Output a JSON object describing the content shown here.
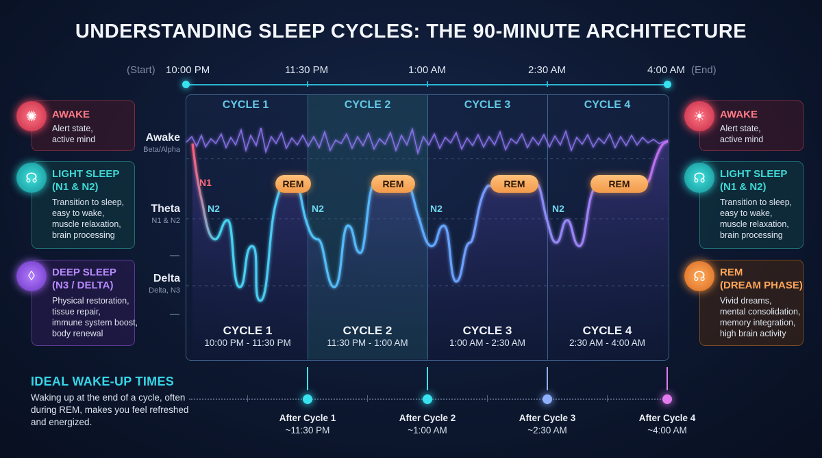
{
  "title": "UNDERSTANDING SLEEP CYCLES: THE 90-MINUTE ARCHITECTURE",
  "timeline": {
    "start_note": "(Start)",
    "end_note": "(End)",
    "labels": [
      "10:00 PM",
      "11:30 PM",
      "1:00 AM",
      "2:30 AM",
      "4:00 AM"
    ]
  },
  "cycles": [
    {
      "head": "CYCLE 1",
      "title": "CYCLE 1",
      "range": "10:00 PM - 11:30 PM"
    },
    {
      "head": "CYCLE 2",
      "title": "CYCLE 2",
      "range": "11:30 PM - 1:00 AM"
    },
    {
      "head": "CYCLE 3",
      "title": "CYCLE 3",
      "range": "1:00 AM - 2:30 AM"
    },
    {
      "head": "CYCLE 4",
      "title": "CYCLE 4",
      "range": "2:30 AM - 4:00 AM"
    }
  ],
  "y_levels": [
    {
      "name": "Awake",
      "sub": "Beta/Alpha"
    },
    {
      "name": "Theta",
      "sub": "N1 & N2"
    },
    {
      "name": "Delta",
      "sub": "Delta, N3"
    }
  ],
  "stage_labels": {
    "n1": "N1",
    "n2": "N2",
    "rem": "REM"
  },
  "left_cards": [
    {
      "title": "AWAKE",
      "subtitle": "",
      "lines": [
        "Alert state,",
        "active mind"
      ],
      "color": "#ff5a6e",
      "icon": "brain-icon"
    },
    {
      "title": "LIGHT SLEEP",
      "subtitle": "(N1 & N2)",
      "lines": [
        "Transition to sleep,",
        "easy to wake,",
        "muscle relaxation,",
        "brain processing"
      ],
      "color": "#27c9c9",
      "icon": "head-brain-icon"
    },
    {
      "title": "DEEP SLEEP",
      "subtitle": "(N3 / DELTA)",
      "lines": [
        "Physical restoration,",
        "tissue repair,",
        "immune system boost,",
        "body renewal"
      ],
      "color": "#a466f0",
      "icon": "droplet-icon"
    }
  ],
  "right_cards": [
    {
      "title": "AWAKE",
      "subtitle": "",
      "lines": [
        "Alert state,",
        "active mind"
      ],
      "color": "#ff5a6e",
      "icon": "lightbulb-icon"
    },
    {
      "title": "LIGHT SLEEP",
      "subtitle": "(N1 & N2)",
      "lines": [
        "Transition to sleep,",
        "easy to wake,",
        "muscle relaxation,",
        "brain processing"
      ],
      "color": "#27c9c9",
      "icon": "head-brain-icon"
    },
    {
      "title": "REM",
      "subtitle": "(DREAM PHASE)",
      "lines": [
        "Vivid dreams,",
        "mental consolidation,",
        "memory integration,",
        "high brain activity"
      ],
      "color": "#f7913a",
      "icon": "head-brain-icon"
    }
  ],
  "wake": {
    "title": "IDEAL WAKE-UP TIMES",
    "description": "Waking up at the end of a cycle, often during REM, makes you feel refreshed and energized.",
    "points": [
      {
        "label": "After Cycle 1",
        "time": "~11:30 PM",
        "color": "#38e3f0"
      },
      {
        "label": "After Cycle 2",
        "time": "~1:00 AM",
        "color": "#38e3f0"
      },
      {
        "label": "After Cycle 3",
        "time": "~2:30 AM",
        "color": "#8fb0ff"
      },
      {
        "label": "After Cycle 4",
        "time": "~4:00 AM",
        "color": "#e27bf0"
      }
    ]
  },
  "colors": {
    "accent": "#38e3f0",
    "rem": "#f7a24f",
    "deep": "#a466f0",
    "awake": "#ff5a6e"
  }
}
